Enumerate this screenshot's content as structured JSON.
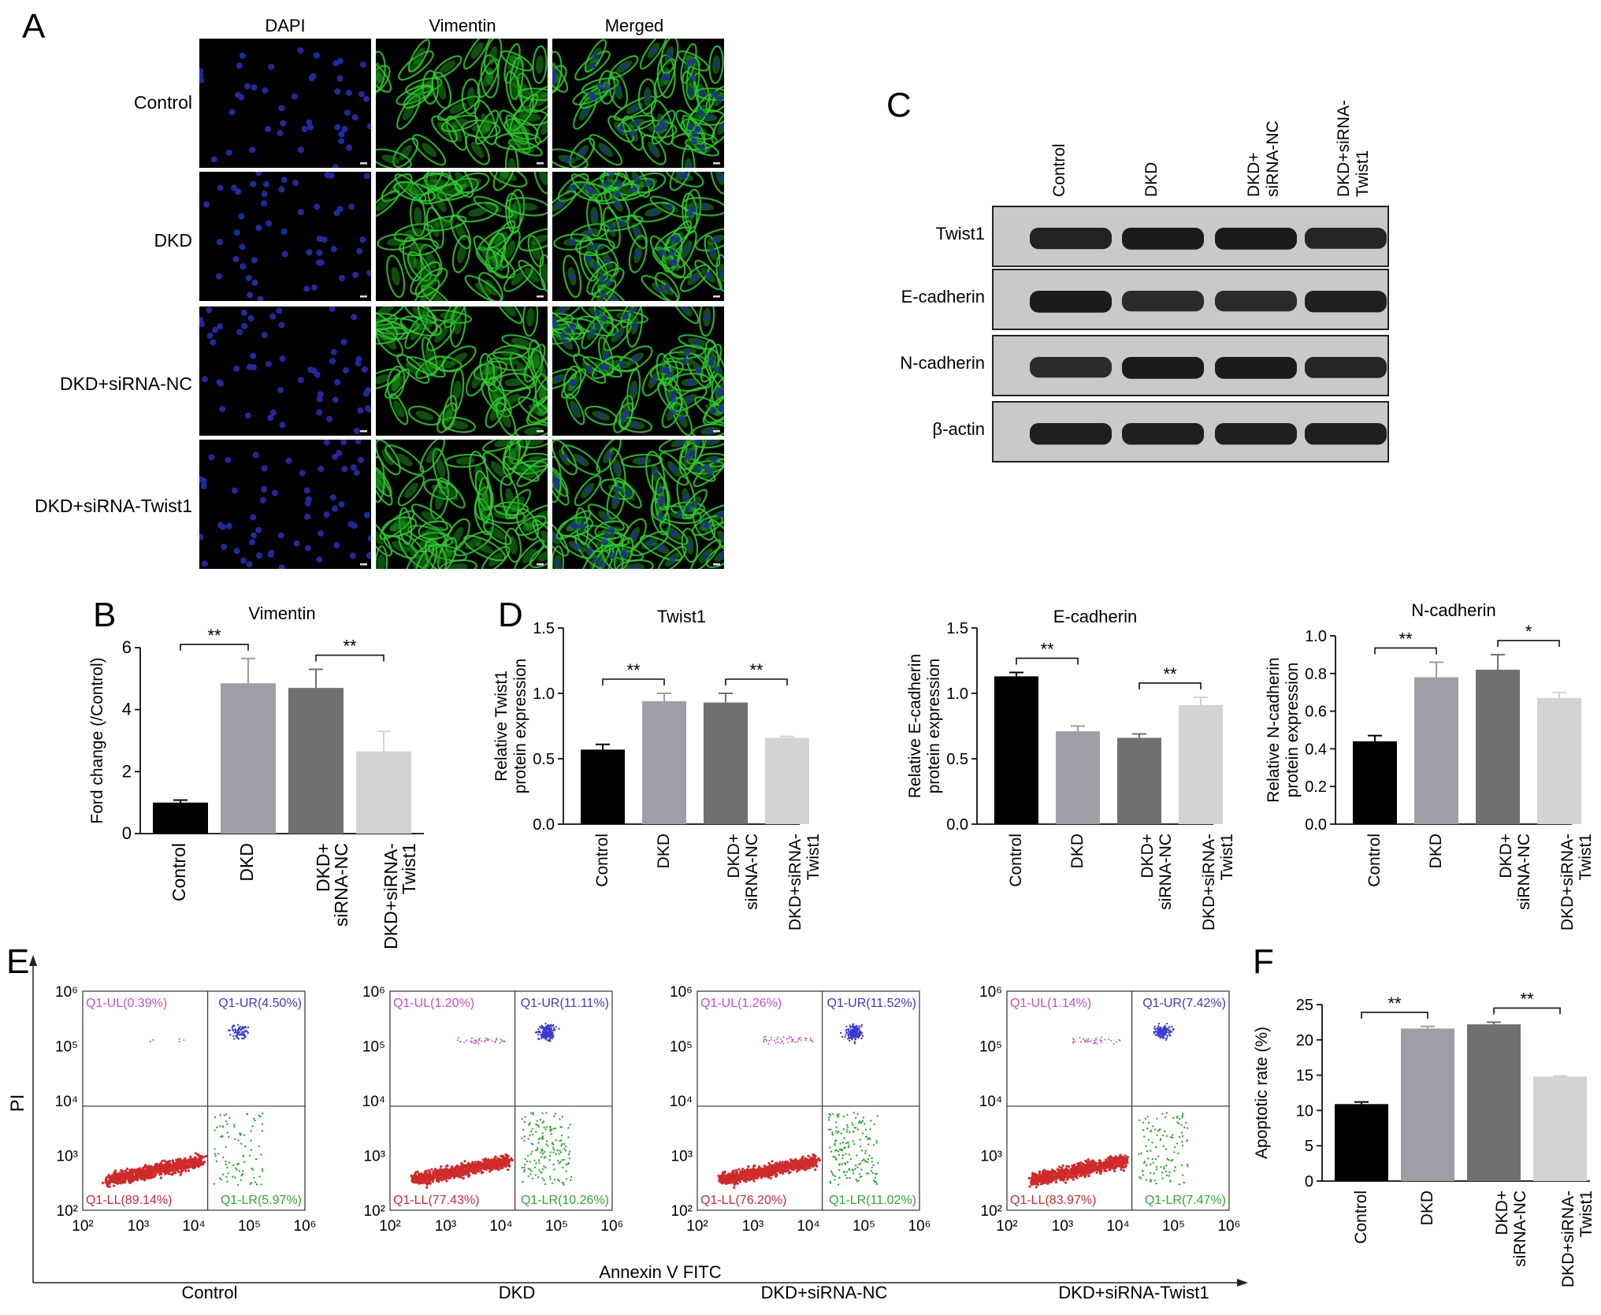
{
  "panel_labels": {
    "a": "A",
    "b": "B",
    "c": "C",
    "d": "D",
    "e": "E",
    "f": "F"
  },
  "colors": {
    "control": "#000000",
    "dkd": "#9e9ea6",
    "nc": "#707070",
    "twist": "#d3d3d3",
    "dapi": "#1f2a9e",
    "vimentin": "#2ccf2c",
    "q_ul": "#c850c0",
    "q_ur": "#3a3ad0",
    "q_ll": "#d02a2a",
    "q_lr": "#2fa82f"
  },
  "panel_a": {
    "columns": [
      "DAPI",
      "Vimentin",
      "Merged"
    ],
    "rows": [
      "Control",
      "DKD",
      "DKD+siRNA-NC",
      "DKD+siRNA-Twist1"
    ]
  },
  "panel_c": {
    "lanes": [
      [
        "Control"
      ],
      [
        "DKD"
      ],
      [
        "DKD+",
        "siRNA-NC"
      ],
      [
        "DKD+siRNA-",
        "Twist1"
      ]
    ],
    "blots": [
      {
        "label": "Twist1",
        "intensity": [
          0.85,
          0.95,
          0.95,
          0.8
        ]
      },
      {
        "label": "E-cadherin",
        "intensity": [
          0.95,
          0.7,
          0.7,
          0.9
        ]
      },
      {
        "label": "N-cadherin",
        "intensity": [
          0.7,
          0.95,
          0.95,
          0.8
        ]
      },
      {
        "label": "β-actin",
        "intensity": [
          0.9,
          0.9,
          0.9,
          0.9
        ]
      }
    ]
  },
  "flow": {
    "ylabel": "PI",
    "xlabel": "Annexin V FITC",
    "plots": [
      {
        "group": "Control",
        "ul": "Q1-UL(0.39%)",
        "ur": "Q1-UR(4.50%)",
        "ll": "Q1-LL(89.14%)",
        "lr": "Q1-LR(5.97%)"
      },
      {
        "group": "DKD",
        "ul": "Q1-UL(1.20%)",
        "ur": "Q1-UR(11.11%)",
        "ll": "Q1-LL(77.43%)",
        "lr": "Q1-LR(10.26%)"
      },
      {
        "group": "DKD+siRNA-NC",
        "ul": "Q1-UL(1.26%)",
        "ur": "Q1-UR(11.52%)",
        "ll": "Q1-LL(76.20%)",
        "lr": "Q1-LR(11.02%)"
      },
      {
        "group": "DKD+siRNA-Twist1",
        "ul": "Q1-UL(1.14%)",
        "ur": "Q1-UR(7.42%)",
        "ll": "Q1-LL(83.97%)",
        "lr": "Q1-LR(7.47%)"
      }
    ]
  },
  "chart_data": [
    {
      "panel": "B",
      "type": "bar",
      "title": "Vimentin",
      "ylabel": "Ford change (/Control)",
      "ylim": [
        0,
        6
      ],
      "yticks": [
        "0",
        "2",
        "4",
        "6"
      ],
      "categories": [
        [
          "Control"
        ],
        [
          "DKD"
        ],
        [
          "DKD+",
          "siRNA-NC"
        ],
        [
          "DKD+siRNA-",
          "Twist1"
        ]
      ],
      "values": [
        1.0,
        4.85,
        4.7,
        2.65
      ],
      "errors": [
        0.08,
        0.8,
        0.6,
        0.65
      ],
      "significance": [
        {
          "from": 0,
          "to": 1,
          "label": "**"
        },
        {
          "from": 2,
          "to": 3,
          "label": "**"
        }
      ]
    },
    {
      "panel": "D",
      "type": "bar",
      "title": "Twist1",
      "ylabel": [
        "Relative Twist1",
        "protein expression"
      ],
      "ylim": [
        0,
        1.5
      ],
      "yticks": [
        "0.0",
        "0.5",
        "1.0",
        "1.5"
      ],
      "categories": [
        [
          "Control"
        ],
        [
          "DKD"
        ],
        [
          "DKD+",
          "siRNA-NC"
        ],
        [
          "DKD+siRNA-",
          "Twist1"
        ]
      ],
      "values": [
        0.57,
        0.94,
        0.93,
        0.66
      ],
      "errors": [
        0.04,
        0.06,
        0.07,
        0.01
      ],
      "significance": [
        {
          "from": 0,
          "to": 1,
          "label": "**"
        },
        {
          "from": 2,
          "to": 3,
          "label": "**"
        }
      ]
    },
    {
      "panel": "D",
      "type": "bar",
      "title": "E-cadherin",
      "ylabel": [
        "Relative E-cadherin",
        "protein expression"
      ],
      "ylim": [
        0,
        1.5
      ],
      "yticks": [
        "0.0",
        "0.5",
        "1.0",
        "1.5"
      ],
      "categories": [
        [
          "Control"
        ],
        [
          "DKD"
        ],
        [
          "DKD+",
          "siRNA-NC"
        ],
        [
          "DKD+siRNA-",
          "Twist1"
        ]
      ],
      "values": [
        1.13,
        0.71,
        0.66,
        0.91
      ],
      "errors": [
        0.03,
        0.04,
        0.03,
        0.06
      ],
      "significance": [
        {
          "from": 0,
          "to": 1,
          "label": "**"
        },
        {
          "from": 2,
          "to": 3,
          "label": "**"
        }
      ]
    },
    {
      "panel": "D",
      "type": "bar",
      "title": "N-cadherin",
      "ylabel": [
        "Relative N-cadherin",
        "protein expression"
      ],
      "ylim": [
        0,
        1.0
      ],
      "yticks": [
        "0.0",
        "0.2",
        "0.4",
        "0.6",
        "0.8",
        "1.0"
      ],
      "categories": [
        [
          "Control"
        ],
        [
          "DKD"
        ],
        [
          "DKD+",
          "siRNA-NC"
        ],
        [
          "DKD+siRNA-",
          "Twist1"
        ]
      ],
      "values": [
        0.44,
        0.78,
        0.82,
        0.67
      ],
      "errors": [
        0.03,
        0.08,
        0.08,
        0.03
      ],
      "significance": [
        {
          "from": 0,
          "to": 1,
          "label": "**"
        },
        {
          "from": 2,
          "to": 3,
          "label": "*"
        }
      ]
    },
    {
      "panel": "F",
      "type": "bar",
      "title": "",
      "ylabel": "Apoptotic rate (%)",
      "ylim": [
        0,
        25
      ],
      "yticks": [
        "0",
        "5",
        "10",
        "15",
        "20",
        "25"
      ],
      "categories": [
        [
          "Control"
        ],
        [
          "DKD"
        ],
        [
          "DKD+",
          "siRNA-NC"
        ],
        [
          "DKD+siRNA-",
          "Twist1"
        ]
      ],
      "values": [
        10.9,
        21.6,
        22.2,
        14.8
      ],
      "errors": [
        0.3,
        0.3,
        0.3,
        0.1
      ],
      "significance": [
        {
          "from": 0,
          "to": 1,
          "label": "**"
        },
        {
          "from": 2,
          "to": 3,
          "label": "**"
        }
      ]
    }
  ]
}
